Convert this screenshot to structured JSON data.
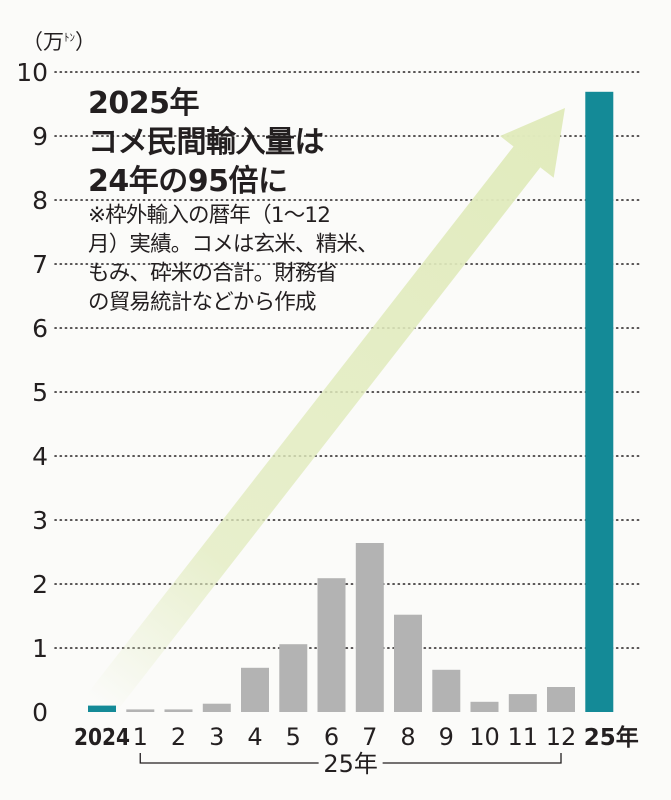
{
  "chart_data": {
    "type": "bar",
    "title": "2025年 コメ民間輸入量は24年の95倍に",
    "title_lines": [
      "2025年",
      "コメ民間輸入量は",
      "24年の95倍に"
    ],
    "note_lines": [
      "※枠外輸入の暦年（1〜12",
      "月）実績。コメは玄米、精米、",
      "もみ、砕米の合計。財務省",
      "の貿易統計などから作成"
    ],
    "ylabel": "万",
    "ylabel_suffix": "ﾄﾝ",
    "ylim": [
      0,
      10
    ],
    "yticks": [
      0,
      1,
      2,
      3,
      4,
      5,
      6,
      7,
      8,
      9,
      10
    ],
    "grid": true,
    "categories": [
      "2024",
      "1",
      "2",
      "3",
      "4",
      "5",
      "6",
      "7",
      "8",
      "9",
      "10",
      "11",
      "12",
      "25年"
    ],
    "values": [
      0.1,
      0.04,
      0.04,
      0.13,
      0.69,
      1.06,
      2.09,
      2.64,
      1.52,
      0.66,
      0.16,
      0.28,
      0.39,
      9.69
    ],
    "highlight": [
      "2024",
      "25年"
    ],
    "group_label": "25年",
    "group_range": [
      "1",
      "12"
    ],
    "annotation": "arrow rising from 2024 to 25年",
    "colors": {
      "highlight": "#148a97",
      "monthly": "#b3b3b3",
      "arrow": "#e1ebbd",
      "text": "#231f20",
      "grid": "#231f20"
    }
  }
}
